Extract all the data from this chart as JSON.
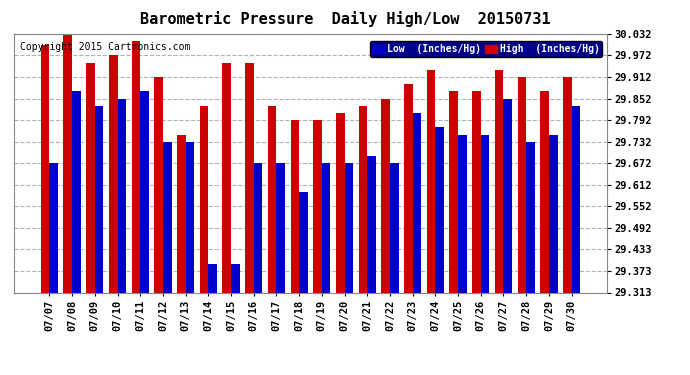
{
  "title": "Barometric Pressure  Daily High/Low  20150731",
  "copyright": "Copyright 2015 Cartronics.com",
  "legend_low": "Low  (Inches/Hg)",
  "legend_high": "High  (Inches/Hg)",
  "dates": [
    "07/07",
    "07/08",
    "07/09",
    "07/10",
    "07/11",
    "07/12",
    "07/13",
    "07/14",
    "07/15",
    "07/16",
    "07/17",
    "07/18",
    "07/19",
    "07/20",
    "07/21",
    "07/22",
    "07/23",
    "07/24",
    "07/25",
    "07/26",
    "07/27",
    "07/28",
    "07/29",
    "07/30"
  ],
  "high_values": [
    30.0,
    30.032,
    29.952,
    29.972,
    30.012,
    29.912,
    29.752,
    29.832,
    29.952,
    29.952,
    29.832,
    29.792,
    29.792,
    29.812,
    29.832,
    29.852,
    29.892,
    29.932,
    29.872,
    29.872,
    29.932,
    29.912,
    29.872,
    29.912
  ],
  "low_values": [
    29.672,
    29.872,
    29.832,
    29.852,
    29.872,
    29.732,
    29.732,
    29.393,
    29.393,
    29.672,
    29.672,
    29.592,
    29.672,
    29.672,
    29.692,
    29.672,
    29.812,
    29.772,
    29.752,
    29.752,
    29.852,
    29.732,
    29.752,
    29.832
  ],
  "yticks": [
    29.313,
    29.373,
    29.433,
    29.492,
    29.552,
    29.612,
    29.672,
    29.732,
    29.792,
    29.852,
    29.912,
    29.972,
    30.032
  ],
  "ymin": 29.313,
  "ymax": 30.032,
  "bar_color_low": "#0000cc",
  "bar_color_high": "#cc0000",
  "bg_color": "#ffffff",
  "grid_color": "#aaaaaa",
  "title_fontsize": 11,
  "copyright_fontsize": 7,
  "tick_fontsize": 7.5
}
